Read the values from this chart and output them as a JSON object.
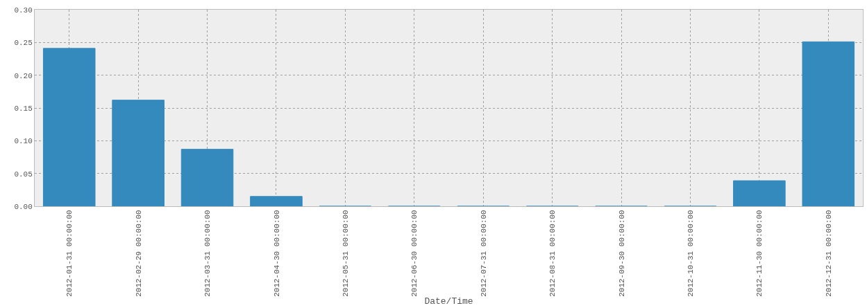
{
  "chart_data": {
    "type": "bar",
    "xlabel": "Date/Time",
    "categories": [
      "2012-01-31 00:00:00",
      "2012-02-29 00:00:00",
      "2012-03-31 00:00:00",
      "2012-04-30 00:00:00",
      "2012-05-31 00:00:00",
      "2012-06-30 00:00:00",
      "2012-07-31 00:00:00",
      "2012-08-31 00:00:00",
      "2012-09-30 00:00:00",
      "2012-10-31 00:00:00",
      "2012-11-30 00:00:00",
      "2012-12-31 00:00:00"
    ],
    "values": [
      0.241,
      0.162,
      0.087,
      0.015,
      0,
      0,
      0,
      0,
      0,
      0,
      0.039,
      0.251
    ],
    "color": "#348abd",
    "ylim": [
      0,
      0.3
    ],
    "yticks": [
      {
        "value": 0,
        "label": "0.00"
      },
      {
        "value": 0.05,
        "label": "0.05"
      },
      {
        "value": 0.1,
        "label": "0.10"
      },
      {
        "value": 0.15,
        "label": "0.15"
      },
      {
        "value": 0.2,
        "label": "0.20"
      },
      {
        "value": 0.25,
        "label": "0.25"
      },
      {
        "value": 0.3,
        "label": "0.30"
      }
    ],
    "grid": true
  }
}
